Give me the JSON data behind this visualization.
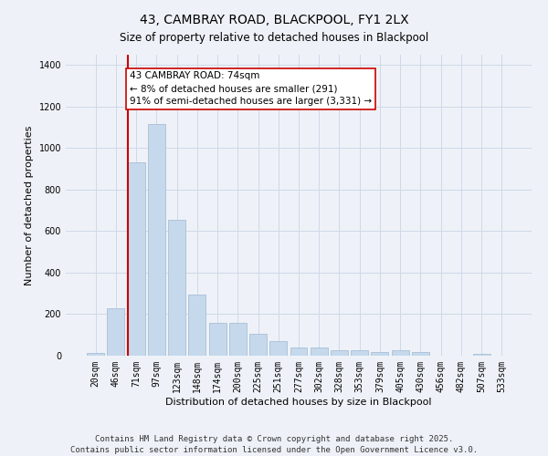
{
  "title_line1": "43, CAMBRAY ROAD, BLACKPOOL, FY1 2LX",
  "title_line2": "Size of property relative to detached houses in Blackpool",
  "xlabel": "Distribution of detached houses by size in Blackpool",
  "ylabel": "Number of detached properties",
  "categories": [
    "20sqm",
    "46sqm",
    "71sqm",
    "97sqm",
    "123sqm",
    "148sqm",
    "174sqm",
    "200sqm",
    "225sqm",
    "251sqm",
    "277sqm",
    "302sqm",
    "328sqm",
    "353sqm",
    "379sqm",
    "405sqm",
    "430sqm",
    "456sqm",
    "482sqm",
    "507sqm",
    "533sqm"
  ],
  "values": [
    15,
    230,
    930,
    1115,
    655,
    295,
    160,
    160,
    105,
    70,
    38,
    38,
    25,
    25,
    18,
    25,
    18,
    0,
    0,
    10,
    0
  ],
  "bar_color": "#c5d8ec",
  "bar_edge_color": "#a0b8d0",
  "vline_color": "#cc0000",
  "annotation_text": "43 CAMBRAY ROAD: 74sqm\n← 8% of detached houses are smaller (291)\n91% of semi-detached houses are larger (3,331) →",
  "annotation_box_color": "#ffffff",
  "annotation_box_edge_color": "#cc0000",
  "ylim": [
    0,
    1450
  ],
  "yticks": [
    0,
    200,
    400,
    600,
    800,
    1000,
    1200,
    1400
  ],
  "background_color": "#eef2f8",
  "grid_color": "#d0d8e8",
  "footer_line1": "Contains HM Land Registry data © Crown copyright and database right 2025.",
  "footer_line2": "Contains public sector information licensed under the Open Government Licence v3.0.",
  "title_fontsize": 10,
  "subtitle_fontsize": 8.5,
  "axis_label_fontsize": 8,
  "tick_fontsize": 7,
  "annotation_fontsize": 7.5,
  "footer_fontsize": 6.5,
  "vline_bar_index": 2
}
